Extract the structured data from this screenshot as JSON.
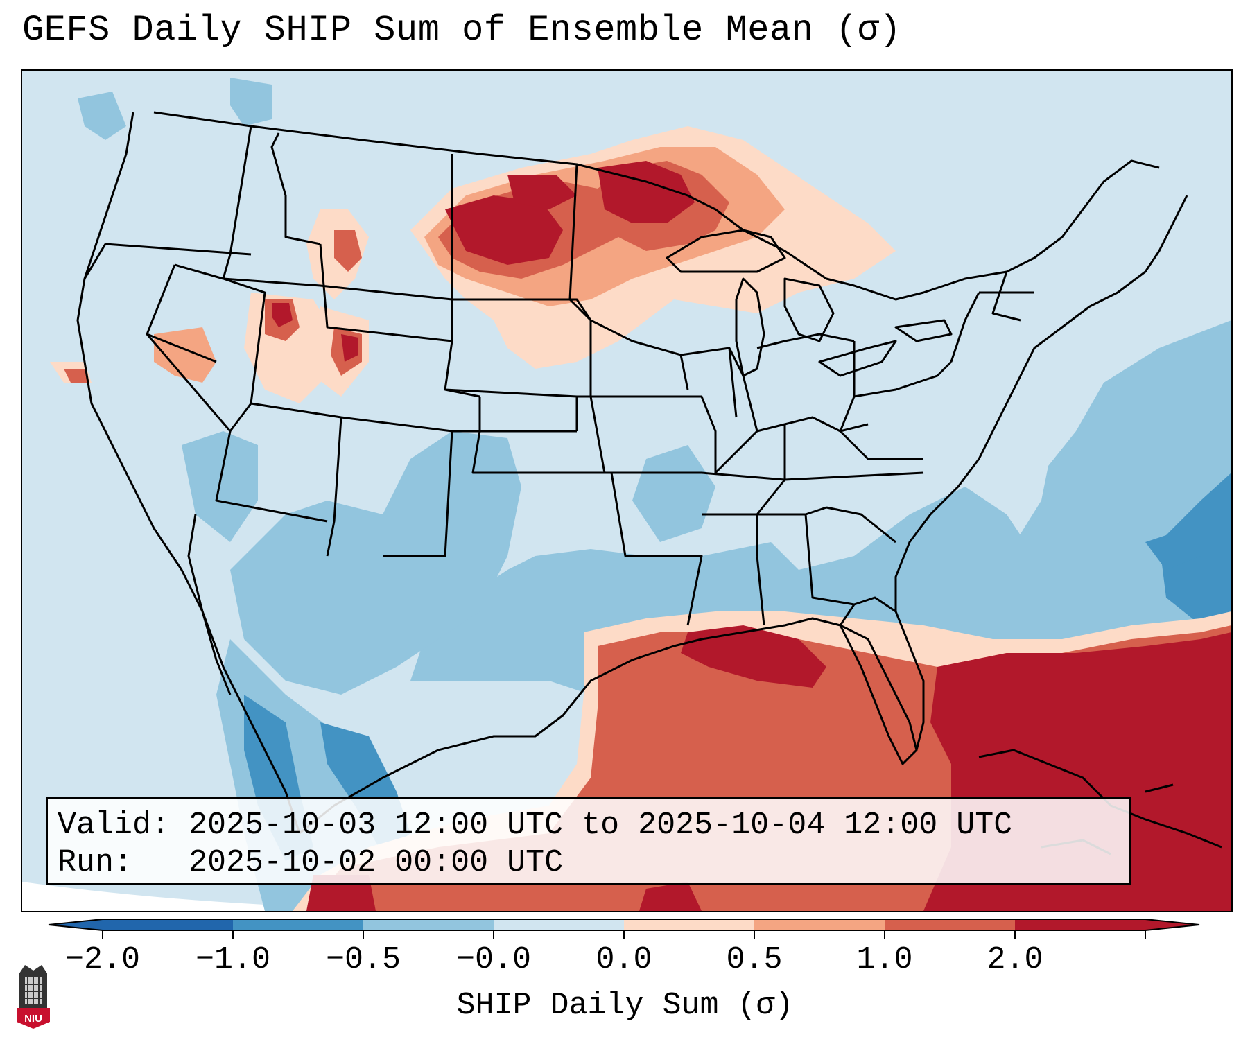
{
  "title": "GEFS Daily SHIP Sum of Ensemble Mean (σ)",
  "info": {
    "valid_label": "Valid:",
    "valid_value": "2025-10-03 12:00 UTC to 2025-10-04 12:00 UTC",
    "run_label": "Run:",
    "run_value": "2025-10-02 00:00 UTC"
  },
  "colorbar": {
    "label": "SHIP Daily Sum (σ)",
    "ticks": [
      "−2.0",
      "−1.0",
      "−0.5",
      "−0.0",
      "0.0",
      "0.5",
      "1.0",
      "2.0"
    ],
    "colors": [
      "#2166ac",
      "#4393c3",
      "#92c5de",
      "#d1e5f0",
      "#fddbc7",
      "#f4a582",
      "#d6604d",
      "#b2182b"
    ],
    "under_color": "#2166ac",
    "over_color": "#b2182b"
  },
  "colors": {
    "ocean_far": "#ffffff",
    "neutral_neg": "#d1e5f0",
    "border": "#000000"
  },
  "logo": {
    "text": "NIU",
    "name": "niu-logo"
  }
}
